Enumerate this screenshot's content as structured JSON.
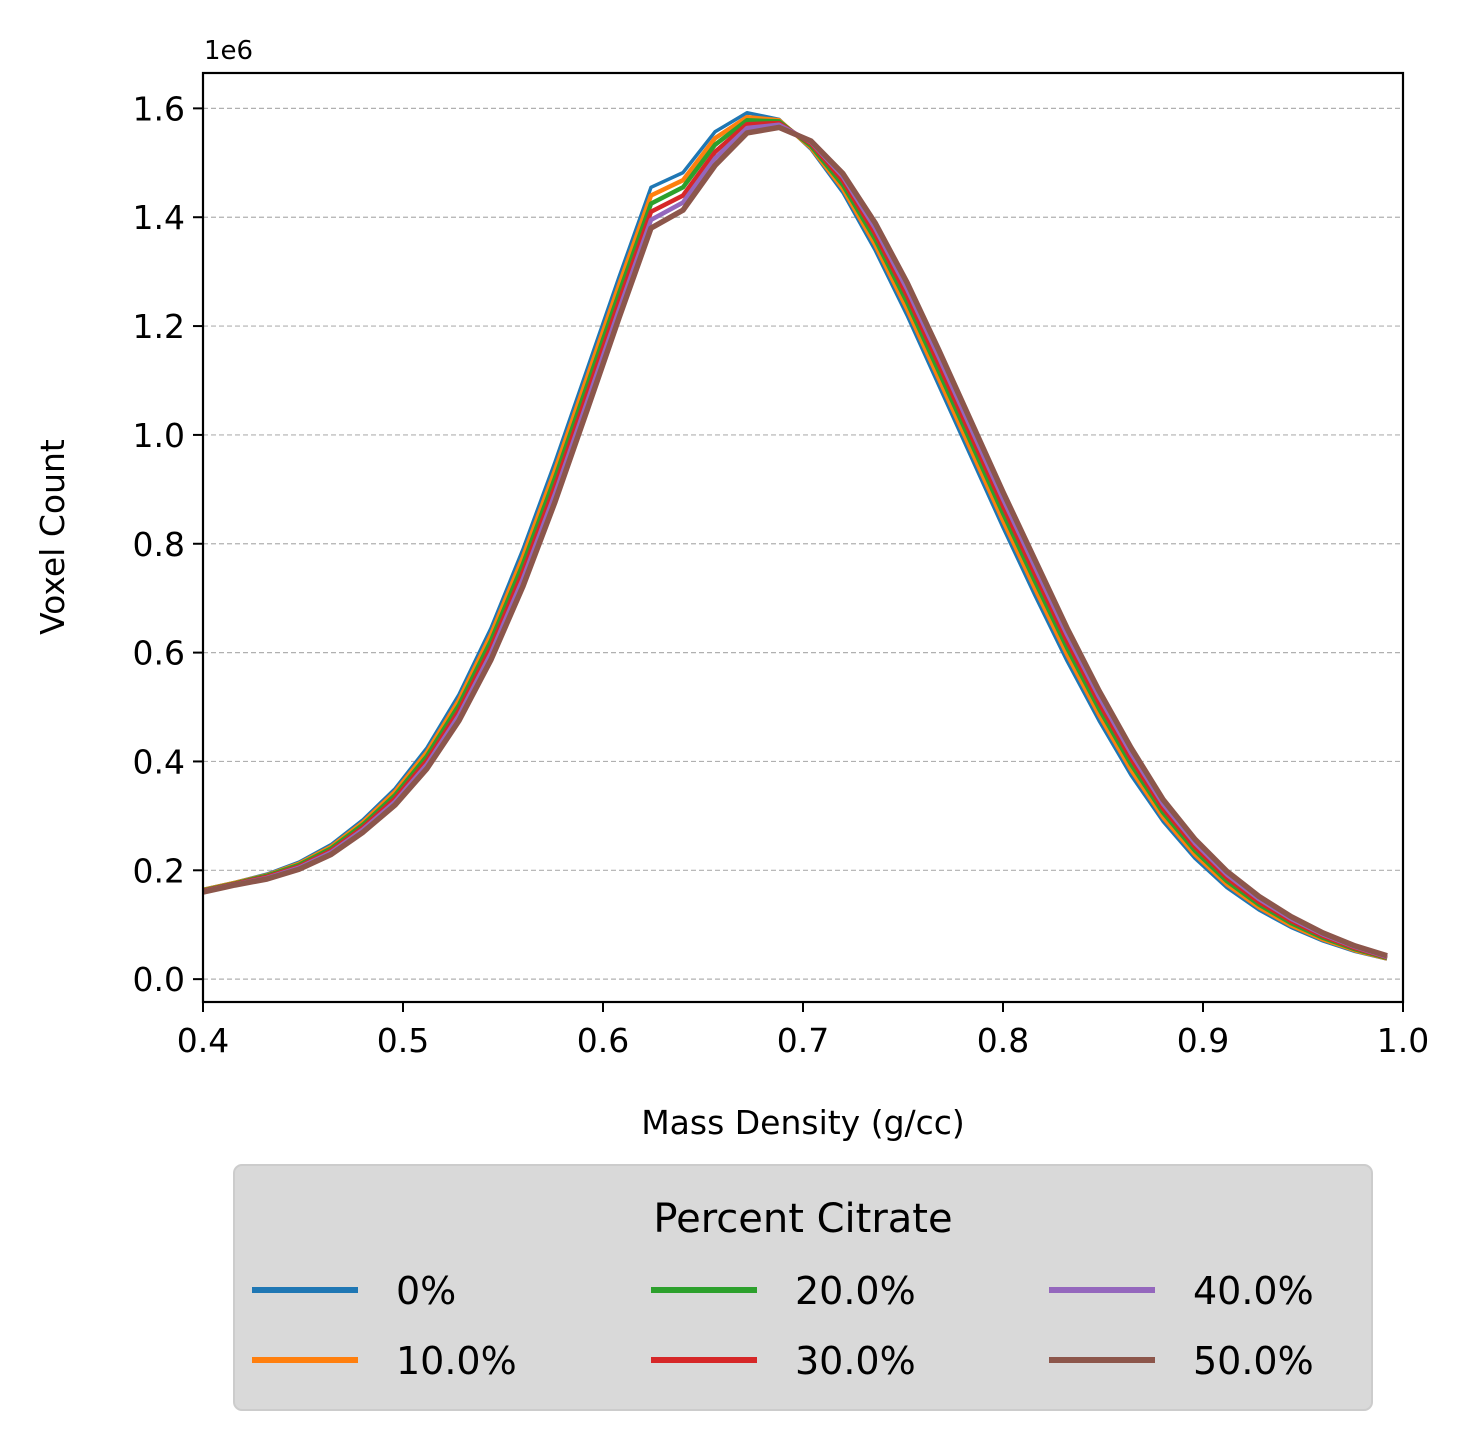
{
  "chart_data": {
    "type": "line",
    "xlabel": "Mass Density (g/cc)",
    "ylabel": "Voxel Count",
    "offset_label": "1e6",
    "xlim": [
      0.4,
      1.0
    ],
    "ylim": [
      -0.042,
      1.665
    ],
    "xticks": [
      "0.4",
      "0.5",
      "0.6",
      "0.7",
      "0.8",
      "0.9",
      "1.0"
    ],
    "yticks": [
      "0.0",
      "0.2",
      "0.4",
      "0.6",
      "0.8",
      "1.0",
      "1.2",
      "1.4",
      "1.6"
    ],
    "y_grid": true,
    "y_unit_multiplier": 1000000,
    "legend": {
      "title": "Percent Citrate",
      "placement": "below-center",
      "columns": 3
    },
    "x": [
      0.4,
      0.416,
      0.432,
      0.448,
      0.464,
      0.48,
      0.496,
      0.512,
      0.528,
      0.544,
      0.56,
      0.576,
      0.592,
      0.608,
      0.624,
      0.64,
      0.656,
      0.672,
      0.688,
      0.704,
      0.72,
      0.736,
      0.752,
      0.768,
      0.784,
      0.8,
      0.816,
      0.832,
      0.848,
      0.864,
      0.88,
      0.896,
      0.912,
      0.928,
      0.944,
      0.96,
      0.976,
      0.992
    ],
    "series": [
      {
        "name": "0%",
        "color": "#1f77b4",
        "values": [
          0.165,
          0.178,
          0.193,
          0.215,
          0.247,
          0.293,
          0.35,
          0.425,
          0.523,
          0.645,
          0.79,
          0.95,
          1.12,
          1.29,
          1.455,
          1.482,
          1.557,
          1.592,
          1.58,
          1.525,
          1.445,
          1.34,
          1.22,
          1.09,
          0.96,
          0.83,
          0.705,
          0.585,
          0.475,
          0.375,
          0.29,
          0.222,
          0.168,
          0.127,
          0.095,
          0.07,
          0.051,
          0.037
        ]
      },
      {
        "name": "10.0%",
        "color": "#ff7f0e",
        "values": [
          0.164,
          0.177,
          0.191,
          0.212,
          0.243,
          0.288,
          0.344,
          0.417,
          0.513,
          0.633,
          0.776,
          0.935,
          1.105,
          1.275,
          1.44,
          1.468,
          1.545,
          1.584,
          1.578,
          1.528,
          1.452,
          1.35,
          1.232,
          1.103,
          0.973,
          0.843,
          0.718,
          0.597,
          0.486,
          0.385,
          0.298,
          0.229,
          0.174,
          0.132,
          0.099,
          0.073,
          0.053,
          0.038
        ]
      },
      {
        "name": "20.0%",
        "color": "#2ca02c",
        "values": [
          0.163,
          0.176,
          0.19,
          0.21,
          0.24,
          0.284,
          0.338,
          0.41,
          0.504,
          0.622,
          0.763,
          0.921,
          1.09,
          1.26,
          1.425,
          1.455,
          1.533,
          1.578,
          1.576,
          1.531,
          1.459,
          1.36,
          1.244,
          1.116,
          0.986,
          0.856,
          0.731,
          0.609,
          0.497,
          0.395,
          0.306,
          0.236,
          0.18,
          0.137,
          0.103,
          0.076,
          0.055,
          0.039
        ]
      },
      {
        "name": "30.0%",
        "color": "#d62728",
        "values": [
          0.162,
          0.175,
          0.188,
          0.207,
          0.236,
          0.279,
          0.332,
          0.402,
          0.494,
          0.61,
          0.749,
          0.906,
          1.075,
          1.245,
          1.41,
          1.44,
          1.52,
          1.571,
          1.573,
          1.535,
          1.467,
          1.37,
          1.256,
          1.129,
          0.999,
          0.869,
          0.744,
          0.621,
          0.508,
          0.405,
          0.314,
          0.243,
          0.186,
          0.142,
          0.107,
          0.079,
          0.057,
          0.04
        ]
      },
      {
        "name": "40.0%",
        "color": "#9467bd",
        "values": [
          0.161,
          0.174,
          0.186,
          0.205,
          0.233,
          0.275,
          0.326,
          0.395,
          0.485,
          0.599,
          0.736,
          0.892,
          1.06,
          1.23,
          1.395,
          1.427,
          1.508,
          1.564,
          1.57,
          1.538,
          1.474,
          1.38,
          1.268,
          1.142,
          1.012,
          0.882,
          0.757,
          0.633,
          0.519,
          0.415,
          0.322,
          0.25,
          0.192,
          0.147,
          0.111,
          0.082,
          0.059,
          0.041
        ]
      },
      {
        "name": "50.0%",
        "color": "#8c564b",
        "values": [
          0.16,
          0.173,
          0.184,
          0.202,
          0.229,
          0.27,
          0.32,
          0.387,
          0.475,
          0.587,
          0.722,
          0.877,
          1.045,
          1.215,
          1.38,
          1.413,
          1.495,
          1.555,
          1.565,
          1.54,
          1.48,
          1.39,
          1.28,
          1.155,
          1.025,
          0.895,
          0.77,
          0.645,
          0.53,
          0.425,
          0.33,
          0.257,
          0.198,
          0.152,
          0.115,
          0.085,
          0.061,
          0.043
        ]
      }
    ]
  }
}
